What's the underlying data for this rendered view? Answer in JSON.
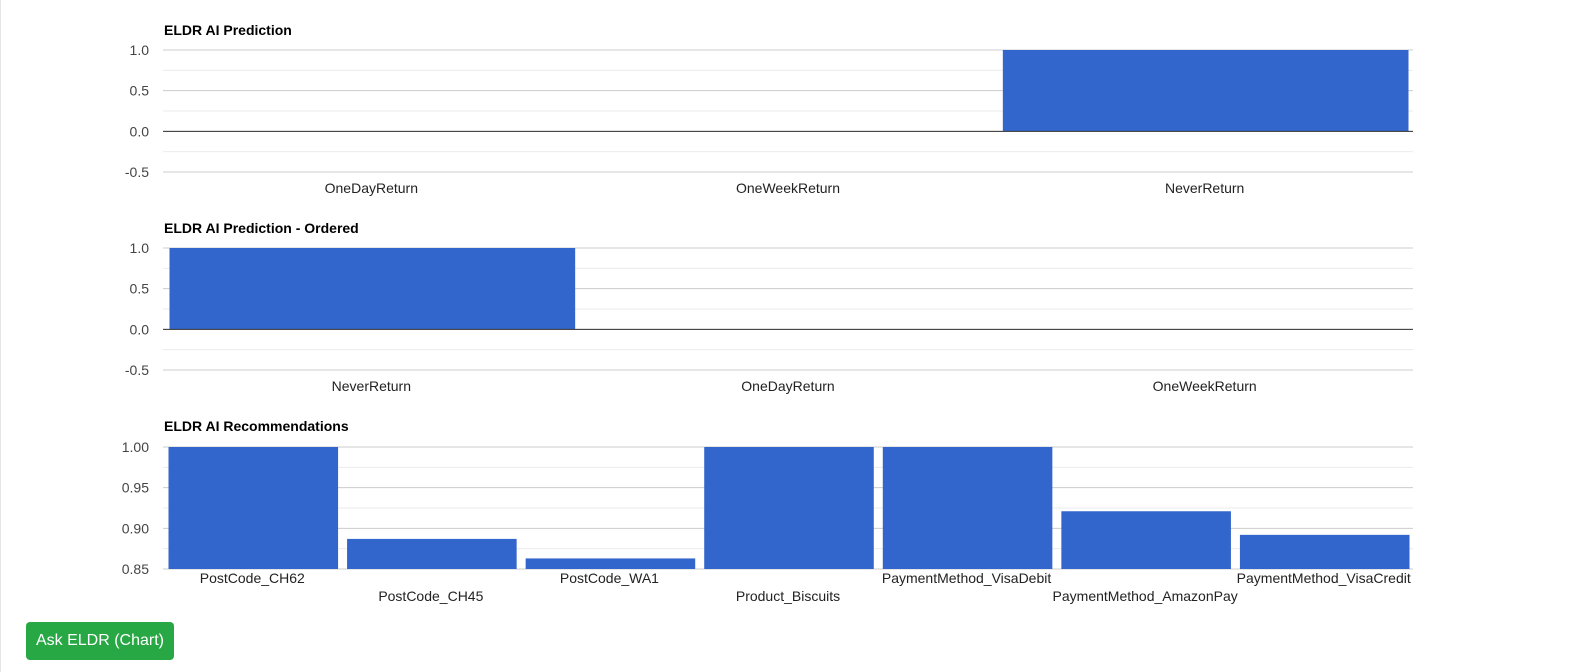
{
  "colors": {
    "bar": "#3366cc",
    "button_bg": "#28a745",
    "button_text": "#ffffff"
  },
  "chart_data": [
    {
      "type": "bar",
      "title": "ELDR AI Prediction",
      "categories": [
        "OneDayReturn",
        "OneWeekReturn",
        "NeverReturn"
      ],
      "values": [
        0,
        0,
        1
      ],
      "ylim": [
        -0.5,
        1.0
      ],
      "yticks": [
        "1.0",
        "0.5",
        "0.0",
        "-0.5"
      ],
      "grid": true,
      "legend": "none"
    },
    {
      "type": "bar",
      "title": "ELDR AI Prediction - Ordered",
      "categories": [
        "NeverReturn",
        "OneDayReturn",
        "OneWeekReturn"
      ],
      "values": [
        1,
        0,
        0
      ],
      "ylim": [
        -0.5,
        1.0
      ],
      "yticks": [
        "1.0",
        "0.5",
        "0.0",
        "-0.5"
      ],
      "grid": true,
      "legend": "none"
    },
    {
      "type": "bar",
      "title": "ELDR AI Recommendations",
      "categories": [
        "PostCode_CH62",
        "PostCode_CH45",
        "PostCode_WA1",
        "Product_Biscuits",
        "PaymentMethod_VisaDebit",
        "PaymentMethod_AmazonPay",
        "PaymentMethod_VisaCredit"
      ],
      "values": [
        1.0,
        0.887,
        0.863,
        1.0,
        1.0,
        0.921,
        0.892
      ],
      "ylim": [
        0.85,
        1.0
      ],
      "yticks": [
        "1.00",
        "0.95",
        "0.90",
        "0.85"
      ],
      "grid": true,
      "legend": "none"
    }
  ],
  "button": {
    "label": "Ask ELDR (Chart)"
  }
}
